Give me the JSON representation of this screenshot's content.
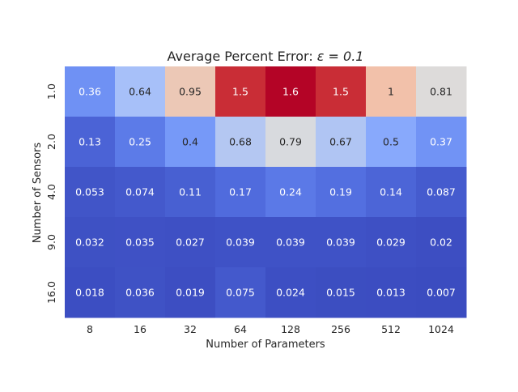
{
  "chart_data": {
    "type": "heatmap",
    "title": "Average Percent Error: ",
    "title_math": "ε = 0.1",
    "xlabel": "Number of Parameters",
    "ylabel": "Number of Sensors",
    "x_categories": [
      "8",
      "16",
      "32",
      "64",
      "128",
      "256",
      "512",
      "1024"
    ],
    "y_categories": [
      "1.0",
      "2.0",
      "4.0",
      "9.0",
      "16.0"
    ],
    "values": [
      [
        0.36,
        0.64,
        0.95,
        1.5,
        1.6,
        1.5,
        1,
        0.81
      ],
      [
        0.13,
        0.25,
        0.4,
        0.68,
        0.79,
        0.67,
        0.5,
        0.37
      ],
      [
        0.053,
        0.074,
        0.11,
        0.17,
        0.24,
        0.19,
        0.14,
        0.087
      ],
      [
        0.032,
        0.035,
        0.027,
        0.039,
        0.039,
        0.039,
        0.029,
        0.02
      ],
      [
        0.018,
        0.036,
        0.019,
        0.075,
        0.024,
        0.015,
        0.013,
        0.007
      ]
    ],
    "colormap": "coolwarm",
    "vmin": 0.007,
    "vmax": 1.6,
    "colorbar": false,
    "grid": false
  }
}
